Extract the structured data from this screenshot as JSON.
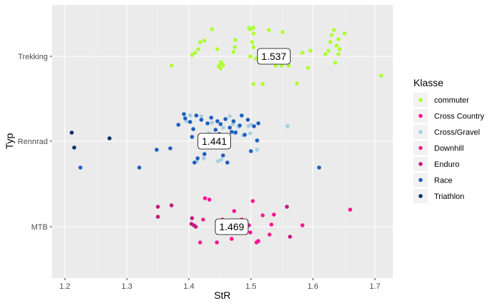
{
  "chart_data": {
    "type": "scatter",
    "title": "",
    "xlabel": "StR",
    "ylabel": "Typ",
    "xlim": [
      1.18,
      1.72
    ],
    "x_ticks": [
      1.2,
      1.3,
      1.4,
      1.5,
      1.6,
      1.7
    ],
    "x_tick_labels": [
      "1.2",
      "1.3",
      "1.4",
      "1.5",
      "1.6",
      "1.7"
    ],
    "categories": [
      "MTB",
      "Rennrad",
      "Trekking"
    ],
    "grid": true,
    "legend": {
      "title": "Klasse",
      "placement": "right",
      "entries": [
        {
          "name": "commuter",
          "color": "#ADFF2F"
        },
        {
          "name": "Cross Country",
          "color": "#FF1493"
        },
        {
          "name": "Cross/Gravel",
          "color": "#A6CEE3"
        },
        {
          "name": "Downhill",
          "color": "#E7298A"
        },
        {
          "name": "Enduro",
          "color": "#C51B7D"
        },
        {
          "name": "Race",
          "color": "#1F5FBF"
        },
        {
          "name": "Triathlon",
          "color": "#08306B"
        }
      ]
    },
    "mean_labels": [
      {
        "category": "Trekking",
        "x": 1.537,
        "label": "1.537"
      },
      {
        "category": "Rennrad",
        "x": 1.441,
        "label": "1.441"
      },
      {
        "category": "MTB",
        "x": 1.469,
        "label": "1.469"
      }
    ],
    "series": [
      {
        "name": "commuter",
        "category": "Trekking",
        "points": [
          [
            1.372,
            -0.13
          ],
          [
            1.405,
            0.02
          ],
          [
            1.41,
            0.05
          ],
          [
            1.415,
            0.1
          ],
          [
            1.418,
            0.2
          ],
          [
            1.425,
            0.22
          ],
          [
            1.437,
            0.38
          ],
          [
            1.446,
            0.1
          ],
          [
            1.448,
            -0.14
          ],
          [
            1.451,
            -0.17
          ],
          [
            1.451,
            -0.1
          ],
          [
            1.452,
            -0.08
          ],
          [
            1.455,
            -0.12
          ],
          [
            1.472,
            0.06
          ],
          [
            1.474,
            0.13
          ],
          [
            1.475,
            0.23
          ],
          [
            1.497,
            0.4
          ],
          [
            1.499,
            0.38
          ],
          [
            1.499,
            0.0
          ],
          [
            1.502,
            0.2
          ],
          [
            1.504,
            0.13
          ],
          [
            1.504,
            0.32
          ],
          [
            1.504,
            0.4
          ],
          [
            1.504,
            -0.39
          ],
          [
            1.508,
            -0.03
          ],
          [
            1.519,
            -0.39
          ],
          [
            1.529,
            0.37
          ],
          [
            1.54,
            -0.13
          ],
          [
            1.549,
            -0.13
          ],
          [
            1.551,
            0.34
          ],
          [
            1.555,
            0.03
          ],
          [
            1.561,
            0.0
          ],
          [
            1.561,
            -0.13
          ],
          [
            1.574,
            -0.38
          ],
          [
            1.583,
            0.05
          ],
          [
            1.592,
            -0.16
          ],
          [
            1.596,
            0.08
          ],
          [
            1.62,
            0.03
          ],
          [
            1.625,
            0.08
          ],
          [
            1.628,
            0.2
          ],
          [
            1.63,
            0.3
          ],
          [
            1.634,
            0.37
          ],
          [
            1.636,
            -0.09
          ],
          [
            1.638,
            0.15
          ],
          [
            1.641,
            0.24
          ],
          [
            1.641,
            0.03
          ],
          [
            1.643,
            0.1
          ],
          [
            1.651,
            0.32
          ],
          [
            1.71,
            -0.27
          ]
        ]
      },
      {
        "name": "Cross Country",
        "category": "MTB",
        "points": [
          [
            1.426,
            0.4
          ],
          [
            1.433,
            0.38
          ],
          [
            1.445,
            -0.22
          ],
          [
            1.454,
            0.1
          ],
          [
            1.469,
            -0.17
          ],
          [
            1.473,
            0.22
          ],
          [
            1.485,
            0.1
          ],
          [
            1.492,
            -0.03
          ],
          [
            1.499,
            -0.08
          ],
          [
            1.503,
            0.36
          ],
          [
            1.509,
            -0.22
          ],
          [
            1.512,
            -0.2
          ],
          [
            1.533,
            0.03
          ],
          [
            1.537,
            0.17
          ],
          [
            1.583,
            0.02
          ],
          [
            1.66,
            0.24
          ]
        ]
      },
      {
        "name": "Downhill",
        "category": "MTB",
        "points": [
          [
            1.418,
            -0.22
          ],
          [
            1.423,
            0.1
          ],
          [
            1.459,
            -0.08
          ],
          [
            1.475,
            0.0
          ],
          [
            1.497,
            0.02
          ],
          [
            1.519,
            0.16
          ],
          [
            1.53,
            -0.11
          ]
        ]
      },
      {
        "name": "Enduro",
        "category": "MTB",
        "points": [
          [
            1.35,
            0.28
          ],
          [
            1.35,
            0.14
          ],
          [
            1.372,
            0.3
          ],
          [
            1.404,
            0.04
          ],
          [
            1.405,
            0.12
          ],
          [
            1.408,
            0.02
          ],
          [
            1.411,
            0.0
          ],
          [
            1.455,
            -0.08
          ],
          [
            1.558,
            0.28
          ],
          [
            1.563,
            -0.14
          ]
        ]
      },
      {
        "name": "Cross/Gravel",
        "category": "Rennrad",
        "points": [
          [
            1.396,
            0.28
          ],
          [
            1.402,
            0.36
          ],
          [
            1.413,
            -0.28
          ],
          [
            1.42,
            0.35
          ],
          [
            1.424,
            -0.24
          ],
          [
            1.426,
            -0.08
          ],
          [
            1.432,
            0.11
          ],
          [
            1.437,
            0.26
          ],
          [
            1.447,
            -0.28
          ],
          [
            1.452,
            -0.26
          ],
          [
            1.455,
            0.19
          ],
          [
            1.462,
            0.04
          ],
          [
            1.466,
            0.35
          ],
          [
            1.471,
            0.24
          ],
          [
            1.476,
            0.13
          ],
          [
            1.48,
            0.2
          ],
          [
            1.488,
            0.08
          ],
          [
            1.496,
            0.21
          ],
          [
            1.499,
            0.11
          ],
          [
            1.5,
            0.23
          ],
          [
            1.51,
            -0.12
          ],
          [
            1.559,
            0.21
          ]
        ]
      },
      {
        "name": "Race",
        "category": "Rennrad",
        "points": [
          [
            1.225,
            -0.37
          ],
          [
            1.32,
            -0.37
          ],
          [
            1.348,
            -0.12
          ],
          [
            1.37,
            -0.1
          ],
          [
            1.383,
            0.23
          ],
          [
            1.392,
            0.38
          ],
          [
            1.394,
            0.32
          ],
          [
            1.402,
            0.27
          ],
          [
            1.405,
            0.06
          ],
          [
            1.407,
            0.17
          ],
          [
            1.409,
            -0.3
          ],
          [
            1.412,
            0.36
          ],
          [
            1.414,
            -0.24
          ],
          [
            1.42,
            0.3
          ],
          [
            1.425,
            -0.18
          ],
          [
            1.43,
            0.25
          ],
          [
            1.433,
            0.0
          ],
          [
            1.436,
            0.33
          ],
          [
            1.44,
            -0.04
          ],
          [
            1.443,
            0.16
          ],
          [
            1.446,
            0.28
          ],
          [
            1.449,
            0.1
          ],
          [
            1.451,
            0.24
          ],
          [
            1.455,
            -0.2
          ],
          [
            1.459,
            0.31
          ],
          [
            1.462,
            -0.3
          ],
          [
            1.466,
            0.19
          ],
          [
            1.469,
            0.13
          ],
          [
            1.472,
            0.28
          ],
          [
            1.475,
            0.12
          ],
          [
            1.482,
            0.22
          ],
          [
            1.485,
            0.36
          ],
          [
            1.49,
            0.09
          ],
          [
            1.495,
            0.3
          ],
          [
            1.5,
            -0.14
          ],
          [
            1.505,
            0.21
          ],
          [
            1.51,
            0.01
          ],
          [
            1.512,
            0.25
          ],
          [
            1.61,
            -0.37
          ]
        ]
      },
      {
        "name": "Triathlon",
        "category": "Rennrad",
        "points": [
          [
            1.211,
            0.12
          ],
          [
            1.215,
            -0.09
          ],
          [
            1.272,
            0.04
          ]
        ]
      }
    ]
  }
}
